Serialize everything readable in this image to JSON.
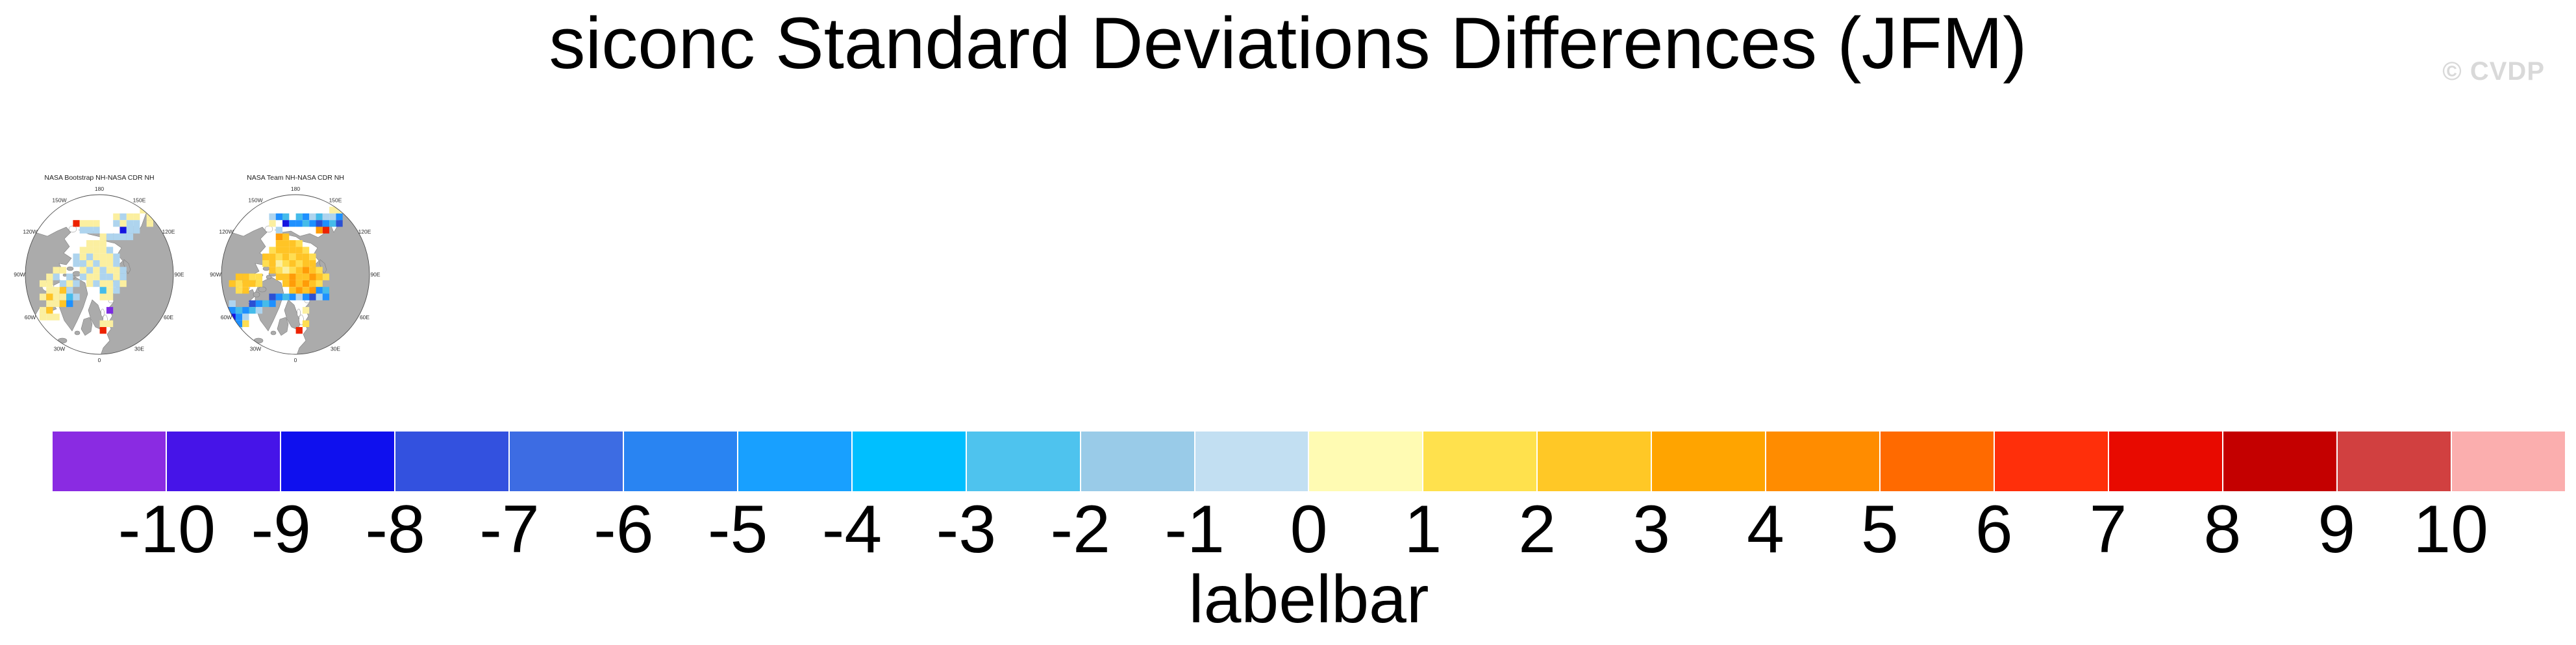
{
  "header": {
    "title": "siconc Standard Deviations Differences (JFM)",
    "watermark": "© CVDP"
  },
  "chart_data": {
    "type": "heatmap",
    "subtype": "polar-stereographic-difference-maps",
    "map_style": {
      "land_color": "#ABABAB",
      "coast_color": "#7E7E7E",
      "ocean_color": "#FFFFFF",
      "outline_color": "#4D4D4D",
      "label_color": "#2B2B2B"
    },
    "palette": {
      "Y": "#FBEFA0",
      "Y2": "#FFDE52",
      "G": "#FFC426",
      "O": "#FF9C08",
      "R": "#ED2200",
      "LB": "#AED4EE",
      "C": "#45BBEA",
      "B": "#1E90FF",
      "DB": "#2B50D4",
      "NB": "#1414E0",
      "P": "#7B2BE2"
    },
    "lon_labels": [
      [
        "180",
        0
      ],
      [
        "150E",
        30
      ],
      [
        "120E",
        60
      ],
      [
        "90E",
        90
      ],
      [
        "60E",
        120
      ],
      [
        "30E",
        150
      ],
      [
        "0",
        180
      ],
      [
        "30W",
        210
      ],
      [
        "60W",
        240
      ],
      [
        "90W",
        270
      ],
      [
        "120W",
        300
      ],
      [
        "150W",
        330
      ]
    ],
    "panels": [
      {
        "title": "NASA Bootstrap NH-NASA CDR NH",
        "cells": [
          [
            8,
            4,
            "R"
          ],
          [
            9,
            4,
            "Y"
          ],
          [
            10,
            4,
            "Y"
          ],
          [
            11,
            4,
            "Y"
          ],
          [
            9,
            5,
            "LB"
          ],
          [
            10,
            5,
            "LB"
          ],
          [
            11,
            5,
            "LB"
          ],
          [
            14,
            3,
            "Y"
          ],
          [
            15,
            3,
            "LB"
          ],
          [
            16,
            3,
            "Y"
          ],
          [
            17,
            3,
            "Y"
          ],
          [
            18,
            2,
            "Y"
          ],
          [
            19,
            2,
            "Y"
          ],
          [
            19,
            3,
            "Y"
          ],
          [
            14,
            4,
            "LB"
          ],
          [
            15,
            4,
            "Y"
          ],
          [
            16,
            4,
            "LB"
          ],
          [
            17,
            4,
            "LB"
          ],
          [
            19,
            4,
            "Y"
          ],
          [
            15,
            5,
            "NB"
          ],
          [
            16,
            5,
            "LB"
          ],
          [
            17,
            5,
            "LB"
          ],
          [
            12,
            6,
            "Y"
          ],
          [
            13,
            6,
            "LB"
          ],
          [
            14,
            6,
            "LB"
          ],
          [
            15,
            6,
            "LB"
          ],
          [
            16,
            6,
            "LB"
          ],
          [
            10,
            7,
            "Y"
          ],
          [
            11,
            7,
            "Y"
          ],
          [
            12,
            7,
            "Y"
          ],
          [
            9,
            8,
            "Y"
          ],
          [
            10,
            8,
            "Y"
          ],
          [
            11,
            8,
            "Y"
          ],
          [
            12,
            8,
            "Y"
          ],
          [
            13,
            8,
            "LB"
          ],
          [
            8,
            9,
            "LB"
          ],
          [
            9,
            9,
            "Y"
          ],
          [
            10,
            9,
            "LB"
          ],
          [
            11,
            9,
            "Y"
          ],
          [
            12,
            9,
            "Y"
          ],
          [
            13,
            9,
            "Y"
          ],
          [
            14,
            9,
            "LB"
          ],
          [
            8,
            10,
            "LB"
          ],
          [
            9,
            10,
            "LB"
          ],
          [
            10,
            10,
            "Y"
          ],
          [
            11,
            10,
            "LB"
          ],
          [
            12,
            10,
            "Y"
          ],
          [
            13,
            10,
            "Y"
          ],
          [
            14,
            10,
            "LB"
          ],
          [
            9,
            11,
            "Y"
          ],
          [
            10,
            11,
            "LB"
          ],
          [
            11,
            11,
            "Y"
          ],
          [
            12,
            11,
            "LB"
          ],
          [
            13,
            11,
            "Y"
          ],
          [
            14,
            11,
            "Y"
          ],
          [
            15,
            11,
            "LB"
          ],
          [
            9,
            12,
            "LB"
          ],
          [
            10,
            12,
            "Y"
          ],
          [
            11,
            12,
            "Y"
          ],
          [
            12,
            12,
            "LB"
          ],
          [
            13,
            12,
            "LB"
          ],
          [
            14,
            12,
            "Y"
          ],
          [
            15,
            12,
            "LB"
          ],
          [
            10,
            13,
            "Y"
          ],
          [
            11,
            13,
            "LB"
          ],
          [
            12,
            13,
            "Y"
          ],
          [
            13,
            13,
            "Y"
          ],
          [
            14,
            13,
            "LB"
          ],
          [
            15,
            13,
            "Y"
          ],
          [
            12,
            14,
            "C"
          ],
          [
            13,
            14,
            "Y"
          ],
          [
            14,
            14,
            "LB"
          ],
          [
            12,
            15,
            "Y"
          ],
          [
            13,
            15,
            "Y"
          ],
          [
            5,
            11,
            "Y"
          ],
          [
            6,
            11,
            "Y"
          ],
          [
            4,
            12,
            "Y"
          ],
          [
            5,
            12,
            "LB"
          ],
          [
            7,
            12,
            "LB"
          ],
          [
            3,
            13,
            "Y"
          ],
          [
            4,
            13,
            "Y"
          ],
          [
            6,
            13,
            "LB"
          ],
          [
            7,
            13,
            "Y"
          ],
          [
            8,
            13,
            "LB"
          ],
          [
            4,
            14,
            "Y"
          ],
          [
            5,
            14,
            "Y"
          ],
          [
            6,
            14,
            "G"
          ],
          [
            7,
            14,
            "LB"
          ],
          [
            3,
            15,
            "Y"
          ],
          [
            4,
            15,
            "G"
          ],
          [
            5,
            15,
            "Y"
          ],
          [
            6,
            15,
            "Y"
          ],
          [
            7,
            15,
            "C"
          ],
          [
            8,
            15,
            "LB"
          ],
          [
            4,
            16,
            "Y"
          ],
          [
            5,
            16,
            "Y"
          ],
          [
            6,
            16,
            "G"
          ],
          [
            7,
            16,
            "B"
          ],
          [
            3,
            17,
            "Y"
          ],
          [
            4,
            17,
            "G"
          ],
          [
            3,
            18,
            "Y"
          ],
          [
            4,
            18,
            "Y"
          ],
          [
            5,
            18,
            "Y"
          ],
          [
            13,
            17,
            "P"
          ],
          [
            12,
            19,
            "Y"
          ],
          [
            13,
            19,
            "Y"
          ],
          [
            12,
            20,
            "R"
          ]
        ]
      },
      {
        "title": "NASA Team NH-NASA CDR NH",
        "cells": [
          [
            8,
            3,
            "LB"
          ],
          [
            9,
            3,
            "B"
          ],
          [
            10,
            3,
            "C"
          ],
          [
            12,
            3,
            "C"
          ],
          [
            13,
            3,
            "B"
          ],
          [
            14,
            3,
            "LB"
          ],
          [
            15,
            3,
            "C"
          ],
          [
            16,
            3,
            "LB"
          ],
          [
            17,
            3,
            "LB"
          ],
          [
            18,
            3,
            "B"
          ],
          [
            17,
            2,
            "Y"
          ],
          [
            18,
            2,
            "Y"
          ],
          [
            8,
            4,
            "Y"
          ],
          [
            10,
            4,
            "NB"
          ],
          [
            11,
            4,
            "B"
          ],
          [
            12,
            4,
            "B"
          ],
          [
            13,
            4,
            "C"
          ],
          [
            14,
            4,
            "B"
          ],
          [
            15,
            4,
            "DB"
          ],
          [
            16,
            4,
            "B"
          ],
          [
            17,
            4,
            "C"
          ],
          [
            18,
            4,
            "DB"
          ],
          [
            9,
            5,
            "LB"
          ],
          [
            15,
            5,
            "O"
          ],
          [
            16,
            5,
            "R"
          ],
          [
            9,
            6,
            "O"
          ],
          [
            10,
            6,
            "G"
          ],
          [
            9,
            7,
            "G"
          ],
          [
            10,
            7,
            "G"
          ],
          [
            11,
            7,
            "G"
          ],
          [
            12,
            7,
            "Y2"
          ],
          [
            8,
            8,
            "Y2"
          ],
          [
            9,
            8,
            "G"
          ],
          [
            10,
            8,
            "G"
          ],
          [
            11,
            8,
            "G"
          ],
          [
            12,
            8,
            "G"
          ],
          [
            13,
            8,
            "Y2"
          ],
          [
            7,
            9,
            "G"
          ],
          [
            8,
            9,
            "G"
          ],
          [
            9,
            9,
            "Y2"
          ],
          [
            10,
            9,
            "G"
          ],
          [
            11,
            9,
            "Y2"
          ],
          [
            12,
            9,
            "G"
          ],
          [
            13,
            9,
            "G"
          ],
          [
            14,
            9,
            "Y2"
          ],
          [
            7,
            10,
            "Y2"
          ],
          [
            8,
            10,
            "G"
          ],
          [
            9,
            10,
            "Y"
          ],
          [
            10,
            10,
            "Y2"
          ],
          [
            11,
            10,
            "G"
          ],
          [
            12,
            10,
            "Y2"
          ],
          [
            13,
            10,
            "G"
          ],
          [
            14,
            10,
            "G"
          ],
          [
            8,
            11,
            "G"
          ],
          [
            9,
            11,
            "Y2"
          ],
          [
            10,
            11,
            "Y"
          ],
          [
            11,
            11,
            "Y2"
          ],
          [
            12,
            11,
            "G"
          ],
          [
            13,
            11,
            "O"
          ],
          [
            14,
            11,
            "G"
          ],
          [
            15,
            11,
            "Y2"
          ],
          [
            9,
            12,
            "G"
          ],
          [
            10,
            12,
            "G"
          ],
          [
            11,
            12,
            "O"
          ],
          [
            12,
            12,
            "G"
          ],
          [
            13,
            12,
            "G"
          ],
          [
            14,
            12,
            "O"
          ],
          [
            15,
            12,
            "G"
          ],
          [
            16,
            12,
            "Y2"
          ],
          [
            10,
            13,
            "G"
          ],
          [
            11,
            13,
            "O"
          ],
          [
            12,
            13,
            "G"
          ],
          [
            13,
            13,
            "O"
          ],
          [
            14,
            13,
            "G"
          ],
          [
            15,
            13,
            "Y2"
          ],
          [
            11,
            14,
            "G"
          ],
          [
            12,
            14,
            "O"
          ],
          [
            13,
            14,
            "G"
          ],
          [
            14,
            14,
            "O"
          ],
          [
            3,
            12,
            "G"
          ],
          [
            4,
            12,
            "G"
          ],
          [
            5,
            12,
            "Y2"
          ],
          [
            6,
            12,
            "Y2"
          ],
          [
            2,
            13,
            "G"
          ],
          [
            3,
            13,
            "Y2"
          ],
          [
            4,
            13,
            "G"
          ],
          [
            5,
            13,
            "G"
          ],
          [
            6,
            13,
            "Y2"
          ],
          [
            3,
            14,
            "Y2"
          ],
          [
            4,
            14,
            "G"
          ],
          [
            15,
            14,
            "B"
          ],
          [
            16,
            14,
            "C"
          ],
          [
            13,
            15,
            "B"
          ],
          [
            14,
            15,
            "DB"
          ],
          [
            15,
            15,
            "LB"
          ],
          [
            16,
            15,
            "B"
          ],
          [
            8,
            15,
            "DB"
          ],
          [
            9,
            15,
            "B"
          ],
          [
            10,
            15,
            "C"
          ],
          [
            11,
            15,
            "B"
          ],
          [
            12,
            15,
            "LB"
          ],
          [
            5,
            16,
            "DB"
          ],
          [
            6,
            16,
            "B"
          ],
          [
            7,
            16,
            "C"
          ],
          [
            8,
            16,
            "B"
          ],
          [
            2,
            16,
            "LB"
          ],
          [
            1,
            17,
            "DB"
          ],
          [
            2,
            17,
            "B"
          ],
          [
            3,
            17,
            "C"
          ],
          [
            4,
            17,
            "B"
          ],
          [
            5,
            17,
            "C"
          ],
          [
            6,
            17,
            "LB"
          ],
          [
            1,
            18,
            "B"
          ],
          [
            2,
            18,
            "NB"
          ],
          [
            3,
            18,
            "B"
          ],
          [
            4,
            18,
            "LB"
          ],
          [
            2,
            19,
            "C"
          ],
          [
            3,
            19,
            "B"
          ],
          [
            4,
            19,
            "Y2"
          ],
          [
            3,
            20,
            "LB"
          ],
          [
            13,
            17,
            "Y"
          ],
          [
            13,
            19,
            "Y2"
          ],
          [
            12,
            20,
            "R"
          ]
        ]
      }
    ],
    "colorbar": {
      "caption": "labelbar",
      "tick_values": [
        -10,
        -9,
        -8,
        -7,
        -6,
        -5,
        -4,
        -3,
        -2,
        -1,
        0,
        1,
        2,
        3,
        4,
        5,
        6,
        7,
        8,
        9,
        10
      ],
      "colors": [
        "#8A2BE2",
        "#4614E8",
        "#0F10EE",
        "#3351DF",
        "#3D6CE3",
        "#2984F2",
        "#18A0FF",
        "#00BFFF",
        "#4EC3EE",
        "#99CBE8",
        "#C2DFF2",
        "#FFFBB3",
        "#FFE14D",
        "#FFC826",
        "#FFA400",
        "#FF8C00",
        "#FF6A00",
        "#FF2F0A",
        "#E80A00",
        "#C40000",
        "#D14040",
        "#FBAEAE"
      ],
      "divider_color": "#FFFFFF"
    }
  }
}
